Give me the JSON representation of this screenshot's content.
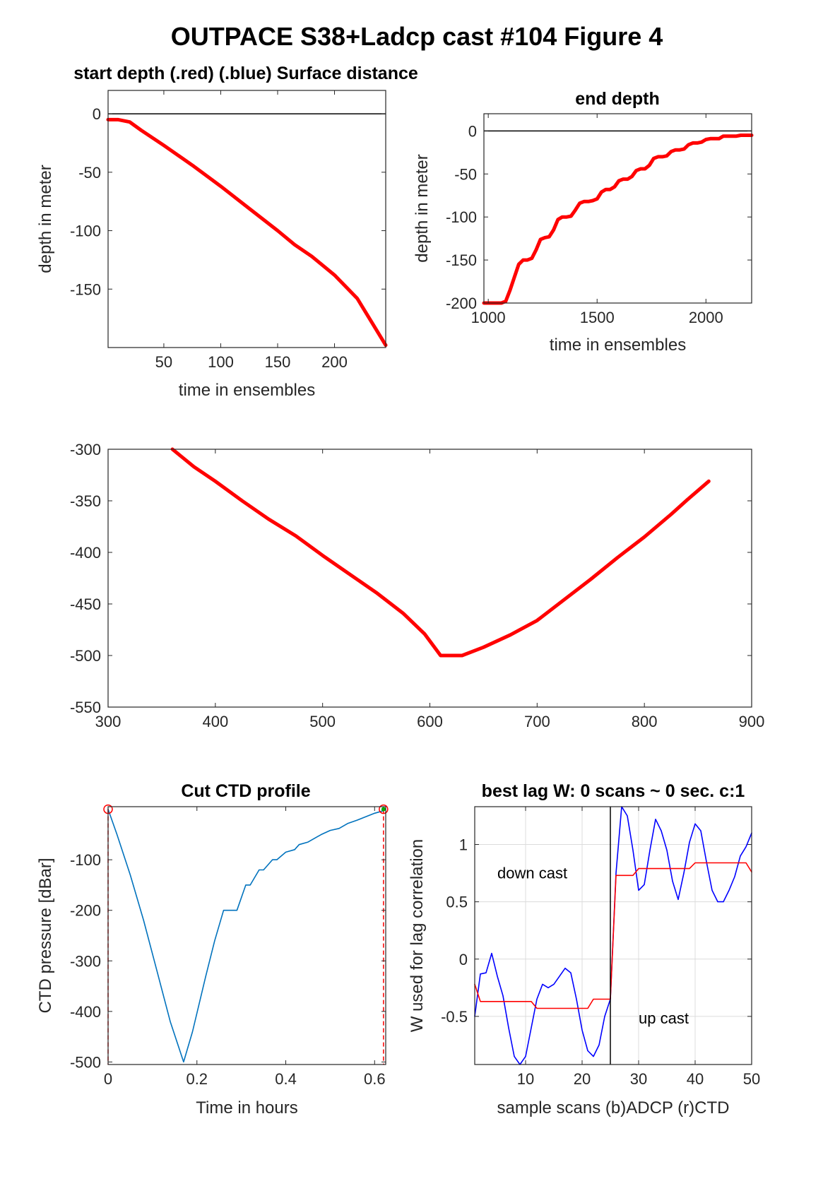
{
  "figure_title": "OUTPACE S38+Ladcp cast #104   Figure 4",
  "colors": {
    "red": "#ff0000",
    "blue": "#0000ff",
    "ctd": "#0072bd",
    "green": "#00aa00",
    "axis": "#262626",
    "grid": "#dcdcdc"
  },
  "chart_data": [
    {
      "id": "start",
      "type": "line",
      "title": "start depth (.red) (.blue) Surface distance",
      "xlabel": "time in ensembles",
      "ylabel": "depth in meter",
      "xlim": [
        1,
        245
      ],
      "ylim": [
        -200,
        20
      ],
      "xticks": [
        50,
        100,
        150,
        200
      ],
      "yticks": [
        0,
        -50,
        -100,
        -150
      ],
      "reference_line": 0,
      "series": [
        {
          "color": "red",
          "x": [
            1,
            10,
            20,
            30,
            50,
            75,
            100,
            125,
            150,
            165,
            180,
            200,
            220,
            245
          ],
          "y": [
            -5,
            -5,
            -7,
            -14,
            -27,
            -44,
            -62,
            -81,
            -100,
            -112,
            -122,
            -138,
            -158,
            -198
          ]
        }
      ]
    },
    {
      "id": "end",
      "type": "line",
      "title": "end depth",
      "xlabel": "time in ensembles",
      "ylabel": "depth in meter",
      "xlim": [
        980,
        2210
      ],
      "ylim": [
        -200,
        20
      ],
      "xticks": [
        1000,
        1500,
        2000
      ],
      "yticks": [
        0,
        -50,
        -100,
        -150,
        -200
      ],
      "reference_line": 0,
      "series": [
        {
          "color": "red",
          "x": [
            980,
            1060,
            1080,
            1100,
            1120,
            1140,
            1160,
            1180,
            1200,
            1220,
            1240,
            1260,
            1280,
            1300,
            1320,
            1340,
            1360,
            1380,
            1400,
            1420,
            1440,
            1460,
            1480,
            1500,
            1520,
            1540,
            1560,
            1580,
            1600,
            1620,
            1640,
            1660,
            1680,
            1700,
            1720,
            1740,
            1760,
            1780,
            1800,
            1820,
            1840,
            1860,
            1880,
            1900,
            1920,
            1940,
            1960,
            1980,
            2000,
            2020,
            2040,
            2060,
            2080,
            2100,
            2120,
            2140,
            2160,
            2180,
            2210
          ],
          "y": [
            -200,
            -200,
            -198,
            -185,
            -170,
            -155,
            -150,
            -150,
            -148,
            -138,
            -126,
            -124,
            -123,
            -115,
            -103,
            -100,
            -100,
            -99,
            -92,
            -84,
            -82,
            -82,
            -81,
            -79,
            -71,
            -68,
            -68,
            -65,
            -58,
            -56,
            -56,
            -53,
            -46,
            -44,
            -44,
            -40,
            -32,
            -30,
            -30,
            -29,
            -24,
            -22,
            -22,
            -21,
            -16,
            -14,
            -14,
            -13,
            -10,
            -9,
            -9,
            -9,
            -6,
            -6,
            -6,
            -6,
            -5,
            -5,
            -5
          ]
        }
      ]
    },
    {
      "id": "middle",
      "type": "line",
      "title": "",
      "xlabel": "",
      "ylabel": "",
      "xlim": [
        300,
        900
      ],
      "ylim": [
        -550,
        -300
      ],
      "xticks": [
        300,
        400,
        500,
        600,
        700,
        800,
        900
      ],
      "yticks": [
        -300,
        -350,
        -400,
        -450,
        -500,
        -550
      ],
      "series": [
        {
          "color": "red",
          "x": [
            360,
            380,
            400,
            425,
            450,
            475,
            500,
            525,
            550,
            575,
            595,
            610,
            630,
            650,
            675,
            700,
            725,
            750,
            775,
            800,
            825,
            840,
            860
          ],
          "y": [
            -300,
            -317,
            -331,
            -350,
            -368,
            -384,
            -403,
            -421,
            -439,
            -459,
            -479,
            -500,
            -500,
            -492,
            -480,
            -466,
            -446,
            -426,
            -405,
            -385,
            -363,
            -349,
            -331
          ]
        }
      ]
    },
    {
      "id": "ctd",
      "type": "line",
      "title": "Cut CTD profile",
      "xlabel": "Time in hours",
      "ylabel": "CTD pressure [dBar]",
      "xlim": [
        0,
        0.625
      ],
      "ylim": [
        -505,
        5
      ],
      "xticks": [
        0,
        0.2,
        0.4,
        0.6
      ],
      "xticklabels": [
        "0",
        "0.2",
        "0.4",
        "0.6"
      ],
      "yticks": [
        -100,
        -200,
        -300,
        -400,
        -500
      ],
      "series": [
        {
          "color": "ctd",
          "x": [
            0.0,
            0.02,
            0.05,
            0.08,
            0.11,
            0.14,
            0.17,
            0.19,
            0.22,
            0.24,
            0.26,
            0.27,
            0.29,
            0.31,
            0.32,
            0.34,
            0.35,
            0.37,
            0.38,
            0.4,
            0.42,
            0.43,
            0.45,
            0.47,
            0.48,
            0.5,
            0.52,
            0.54,
            0.56,
            0.58,
            0.6,
            0.62
          ],
          "y": [
            0,
            -50,
            -130,
            -220,
            -320,
            -420,
            -500,
            -440,
            -330,
            -260,
            -200,
            -200,
            -200,
            -150,
            -150,
            -120,
            -120,
            -100,
            -100,
            -85,
            -80,
            -70,
            -65,
            -55,
            -50,
            -42,
            -38,
            -28,
            -22,
            -15,
            -8,
            -3
          ]
        }
      ],
      "markers": {
        "start_x": 0.0,
        "end_x": 0.62
      }
    },
    {
      "id": "lag",
      "type": "line",
      "title": "best lag W: 0 scans ~ 0 sec.  c:1",
      "xlabel": "sample scans (b)ADCP (r)CTD",
      "ylabel": "W used for lag correlation",
      "xlim": [
        1,
        50
      ],
      "ylim": [
        -0.92,
        1.33
      ],
      "xticks": [
        10,
        20,
        30,
        40,
        50
      ],
      "yticks": [
        1,
        0.5,
        0,
        -0.5
      ],
      "grid": true,
      "vertical_line": 25,
      "annotations": {
        "down": "down cast",
        "up": "up cast"
      },
      "series": [
        {
          "name": "ADCP",
          "color": "blue",
          "x": [
            1,
            2,
            3,
            4,
            5,
            6,
            7,
            8,
            9,
            10,
            11,
            12,
            13,
            14,
            15,
            16,
            17,
            18,
            19,
            20,
            21,
            22,
            23,
            24,
            25,
            26,
            27,
            28,
            29,
            30,
            31,
            32,
            33,
            34,
            35,
            36,
            37,
            38,
            39,
            40,
            41,
            42,
            43,
            44,
            45,
            46,
            47,
            48,
            49,
            50
          ],
          "y": [
            -0.5,
            -0.13,
            -0.12,
            0.05,
            -0.15,
            -0.32,
            -0.6,
            -0.85,
            -0.92,
            -0.85,
            -0.6,
            -0.35,
            -0.22,
            -0.25,
            -0.22,
            -0.15,
            -0.08,
            -0.12,
            -0.35,
            -0.62,
            -0.8,
            -0.85,
            -0.75,
            -0.5,
            -0.35,
            0.75,
            1.33,
            1.25,
            0.95,
            0.6,
            0.65,
            0.95,
            1.22,
            1.12,
            0.95,
            0.68,
            0.52,
            0.75,
            1.02,
            1.18,
            1.12,
            0.85,
            0.6,
            0.5,
            0.5,
            0.6,
            0.72,
            0.9,
            0.98,
            1.1
          ]
        },
        {
          "name": "CTD",
          "color": "red",
          "x": [
            1,
            2,
            3,
            4,
            5,
            6,
            7,
            8,
            9,
            10,
            11,
            12,
            13,
            14,
            15,
            16,
            17,
            18,
            19,
            20,
            21,
            22,
            23,
            24,
            25,
            26,
            27,
            28,
            29,
            30,
            31,
            32,
            33,
            34,
            35,
            36,
            37,
            38,
            39,
            40,
            41,
            42,
            43,
            44,
            45,
            46,
            47,
            48,
            49,
            50
          ],
          "y": [
            -0.22,
            -0.37,
            -0.37,
            -0.37,
            -0.37,
            -0.37,
            -0.37,
            -0.37,
            -0.37,
            -0.37,
            -0.37,
            -0.43,
            -0.43,
            -0.43,
            -0.43,
            -0.43,
            -0.43,
            -0.43,
            -0.43,
            -0.43,
            -0.43,
            -0.35,
            -0.35,
            -0.35,
            -0.35,
            0.73,
            0.73,
            0.73,
            0.73,
            0.79,
            0.79,
            0.79,
            0.79,
            0.79,
            0.79,
            0.79,
            0.79,
            0.79,
            0.79,
            0.84,
            0.84,
            0.84,
            0.84,
            0.84,
            0.84,
            0.84,
            0.84,
            0.84,
            0.84,
            0.76
          ]
        }
      ]
    }
  ]
}
